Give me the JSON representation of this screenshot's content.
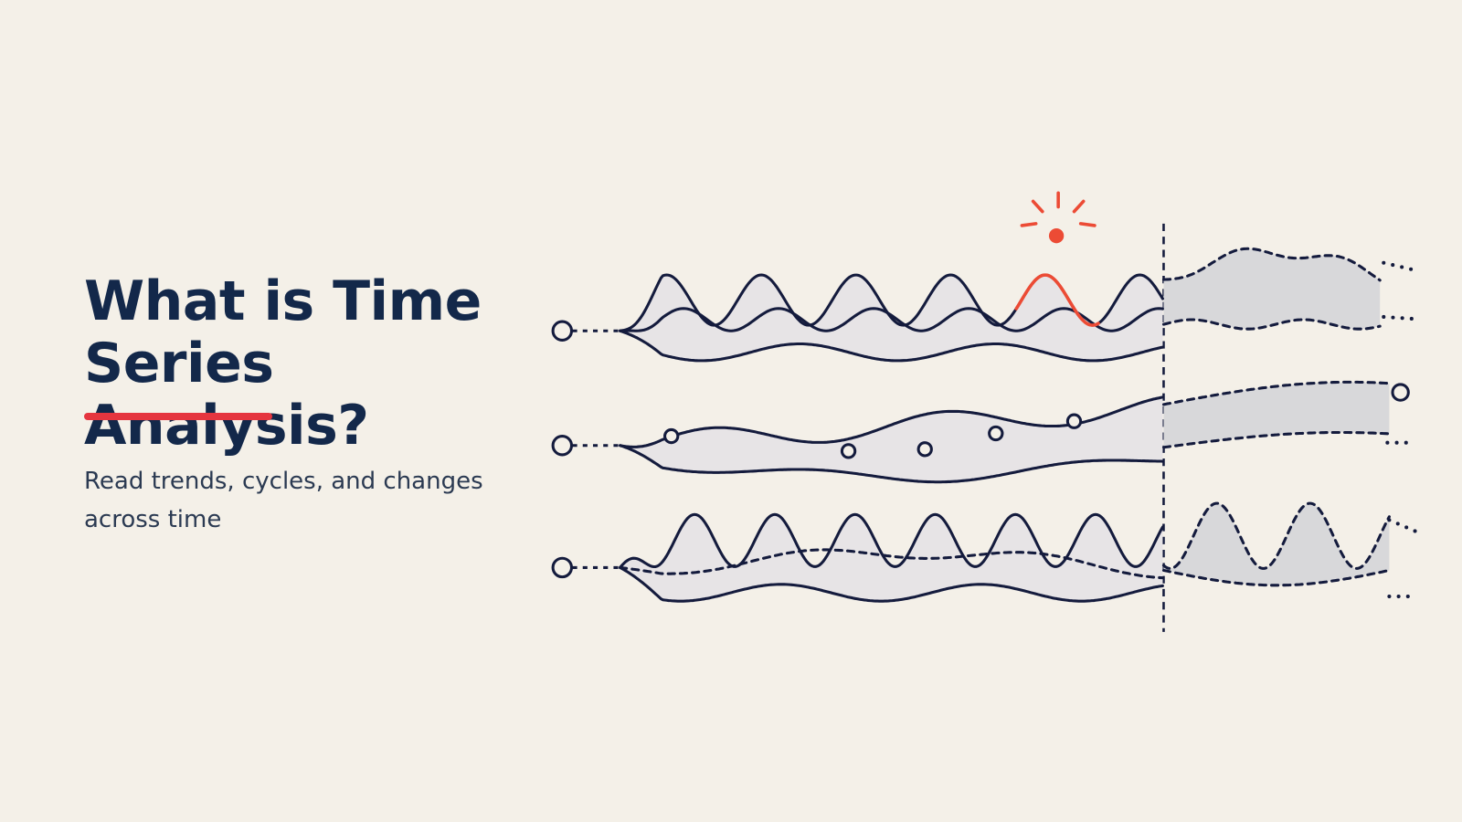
{
  "title": "What is Time Series Analysis?",
  "subtitle": "Read trends, cycles, and changes across time"
}
